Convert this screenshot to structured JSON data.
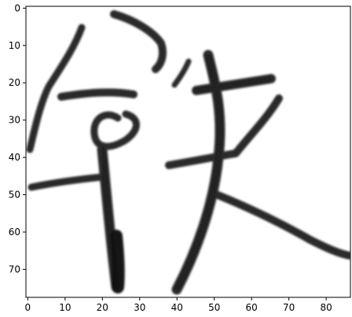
{
  "image": {
    "description_kind": "grayscale pixel image of a brush-written Chinese character",
    "colormap": "gray_r",
    "background": "#ffffff",
    "ink": "#000000"
  },
  "axes": {
    "x_ticks": [
      "0",
      "10",
      "20",
      "30",
      "40",
      "50",
      "60",
      "70",
      "80"
    ],
    "y_ticks": [
      "0",
      "10",
      "20",
      "30",
      "40",
      "50",
      "60",
      "70"
    ],
    "x_range": [
      -0.5,
      86.5
    ],
    "y_range": [
      77.5,
      -0.5
    ]
  }
}
